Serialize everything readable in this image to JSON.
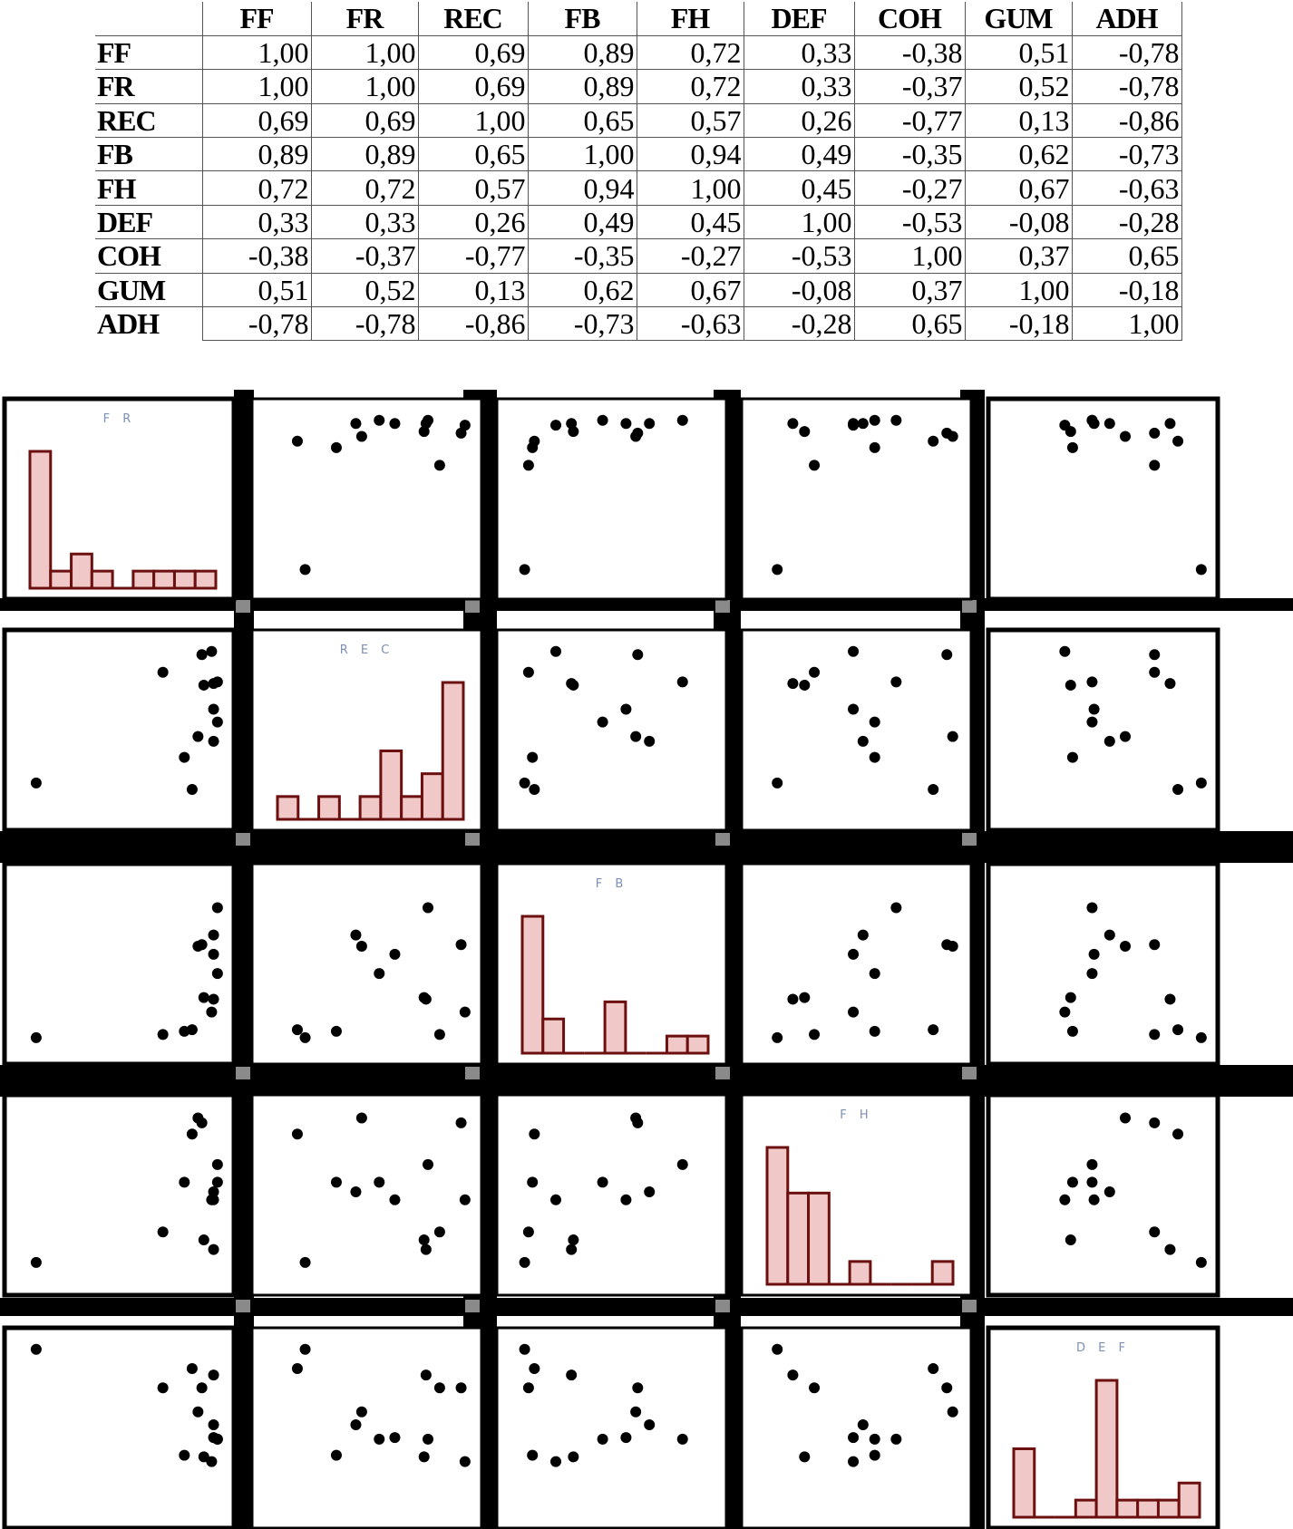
{
  "table": {
    "columns": [
      "FF",
      "FR",
      "REC",
      "FB",
      "FH",
      "DEF",
      "COH",
      "GUM",
      "ADH"
    ],
    "rows": [
      {
        "label": "FF",
        "values": [
          "1,00",
          "1,00",
          "0,69",
          "0,89",
          "0,72",
          "0,33",
          "-0,38",
          "0,51",
          "-0,78"
        ]
      },
      {
        "label": "FR",
        "values": [
          "1,00",
          "1,00",
          "0,69",
          "0,89",
          "0,72",
          "0,33",
          "-0,37",
          "0,52",
          "-0,78"
        ]
      },
      {
        "label": "REC",
        "values": [
          "0,69",
          "0,69",
          "1,00",
          "0,65",
          "0,57",
          "0,26",
          "-0,77",
          "0,13",
          "-0,86"
        ]
      },
      {
        "label": "FB",
        "values": [
          "0,89",
          "0,89",
          "0,65",
          "1,00",
          "0,94",
          "0,49",
          "-0,35",
          "0,62",
          "-0,73"
        ]
      },
      {
        "label": "FH",
        "values": [
          "0,72",
          "0,72",
          "0,57",
          "0,94",
          "1,00",
          "0,45",
          "-0,27",
          "0,67",
          "-0,63"
        ]
      },
      {
        "label": "DEF",
        "values": [
          "0,33",
          "0,33",
          "0,26",
          "0,49",
          "0,45",
          "1,00",
          "-0,53",
          "-0,08",
          "-0,28"
        ]
      },
      {
        "label": "COH",
        "values": [
          "-0,38",
          "-0,37",
          "-0,77",
          "-0,35",
          "-0,27",
          "-0,53",
          "1,00",
          "0,37",
          "0,65"
        ]
      },
      {
        "label": "GUM",
        "values": [
          "0,51",
          "0,52",
          "0,13",
          "0,62",
          "0,67",
          "-0,08",
          "0,37",
          "1,00",
          "-0,18"
        ]
      },
      {
        "label": "ADH",
        "values": [
          "-0,78",
          "-0,78",
          "-0,86",
          "-0,73",
          "-0,63",
          "-0,28",
          "0,65",
          "-0,18",
          "1,00"
        ]
      }
    ]
  },
  "chart_data": {
    "type": "scatter",
    "variables": [
      "FR",
      "REC",
      "FB",
      "FH",
      "DEF"
    ],
    "diagonal_labels": [
      "F R",
      "R E C",
      "F B",
      "F H",
      "D E F"
    ],
    "colors": {
      "bar_fill": "#f1c8c8",
      "bar_stroke": "#6b0f0f",
      "point": "#000000",
      "label": "#7c8fb5"
    },
    "data": {
      "FR": [
        6,
        82,
        86,
        71,
        99,
        89,
        91,
        99,
        92,
        97,
        97,
        96,
        97
      ],
      "REC": [
        17,
        33,
        13,
        86,
        55,
        46,
        97,
        80,
        78,
        43,
        63,
        99,
        79
      ],
      "FB": [
        4,
        8,
        9,
        6,
        44,
        61,
        62,
        85,
        29,
        68,
        56,
        20,
        28
      ],
      "FH": [
        8,
        58,
        88,
        27,
        58,
        98,
        95,
        69,
        22,
        52,
        47,
        47,
        16
      ],
      "DEF": [
        99,
        33,
        87,
        75,
        43,
        60,
        75,
        43,
        32,
        52,
        44,
        29,
        83
      ]
    },
    "histograms": {
      "FR": [
        8,
        1,
        2,
        1,
        0,
        1,
        1,
        1,
        1
      ],
      "REC": [
        1,
        0,
        1,
        0,
        1,
        3,
        1,
        2,
        6
      ],
      "FB": [
        8,
        2,
        0,
        0,
        3,
        0,
        0,
        1,
        1
      ],
      "FH": [
        6,
        4,
        4,
        0,
        1,
        0,
        0,
        0,
        1
      ],
      "DEF": [
        4,
        0,
        0,
        1,
        8,
        1,
        1,
        1,
        2
      ]
    }
  }
}
